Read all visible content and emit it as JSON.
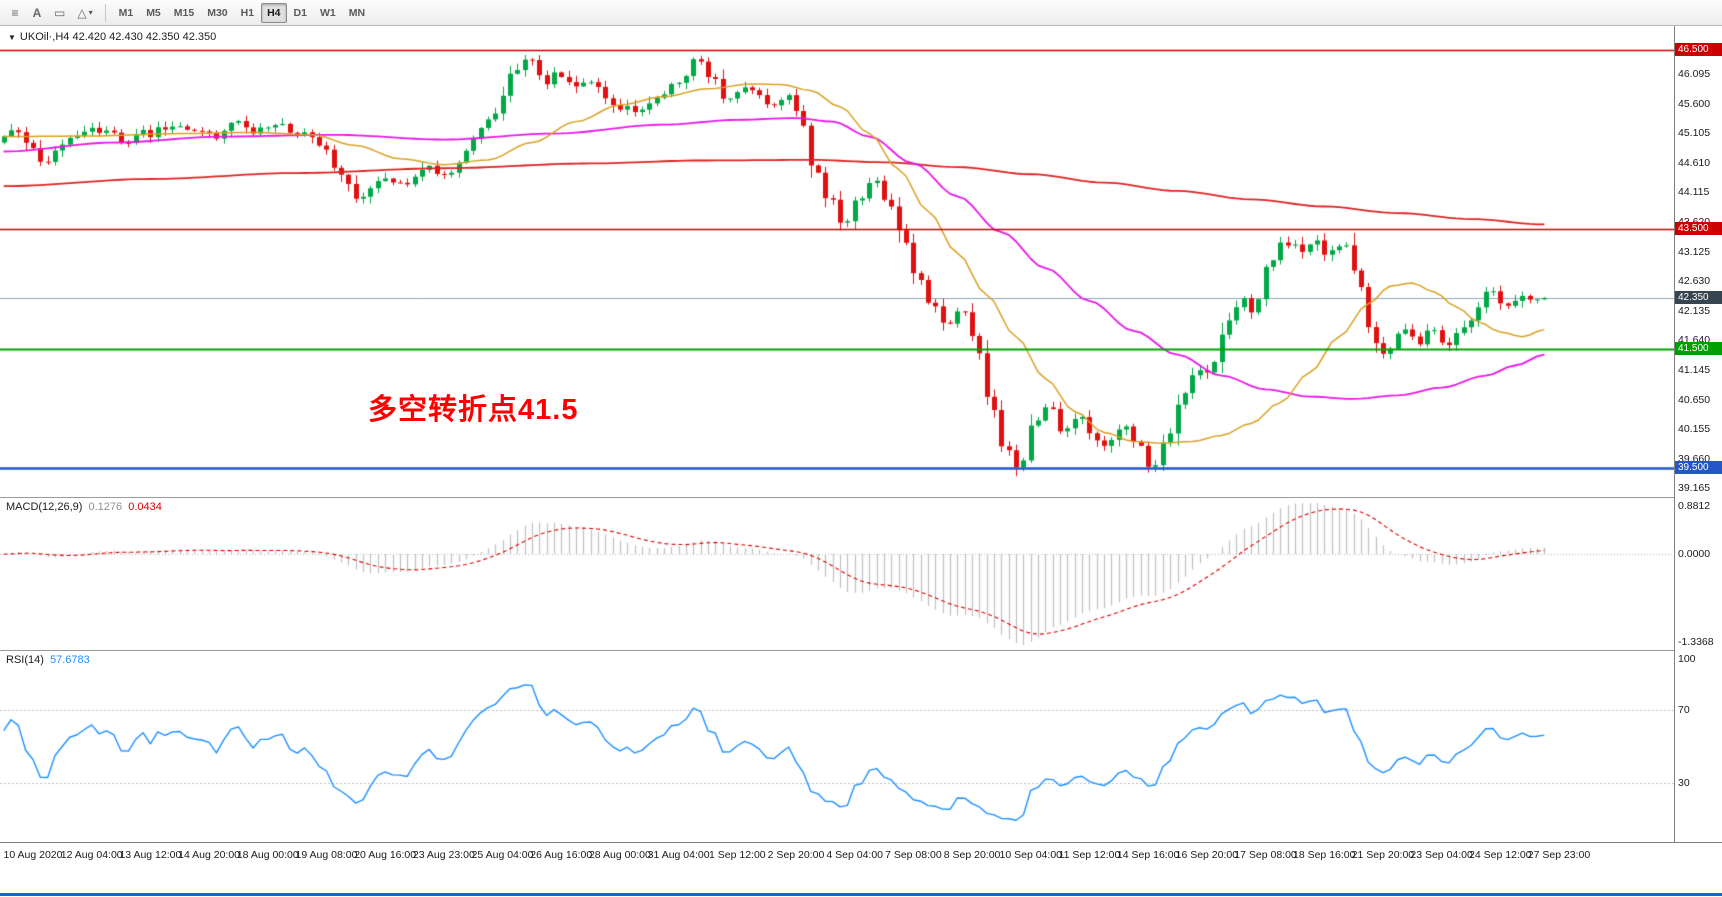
{
  "icons": {
    "chart_menu": "≡",
    "text_label": "A",
    "text_frame": "▭",
    "shapes": "△",
    "dropdown_caret": "▾",
    "symbol_collapse": "▼"
  },
  "toolbar": {
    "timeframes": [
      "M1",
      "M5",
      "M15",
      "M30",
      "H1",
      "H4",
      "D1",
      "W1",
      "MN"
    ],
    "active_timeframe": "H4"
  },
  "symbol_info": "UKOil·,H4  42.420 42.430 42.350 42.350",
  "annotation": {
    "text": "多空转折点41.5"
  },
  "macd": {
    "title": "MACD(12,26,9)",
    "value_main": "0.1276",
    "value_signal": "0.0434",
    "scale_labels": [
      "0.8812",
      "0.0000",
      "-1.3368"
    ]
  },
  "rsi": {
    "title": "RSI(14)",
    "value": "57.6783",
    "scale_labels": [
      "100",
      "70",
      "30"
    ],
    "levels": [
      70,
      30
    ]
  },
  "price_axis_labels": [
    "46.095",
    "45.600",
    "45.105",
    "44.610",
    "44.115",
    "43.620",
    "43.125",
    "42.630",
    "42.135",
    "41.640",
    "41.145",
    "40.650",
    "40.155",
    "39.660",
    "39.165"
  ],
  "time_axis_labels": [
    "10 Aug 2020",
    "12 Aug 04:00",
    "13 Aug 12:00",
    "14 Aug 20:00",
    "18 Aug 00:00",
    "19 Aug 08:00",
    "20 Aug 16:00",
    "23 Aug 23:00",
    "25 Aug 04:00",
    "26 Aug 16:00",
    "28 Aug 00:00",
    "31 Aug 04:00",
    "1 Sep 12:00",
    "2 Sep 20:00",
    "4 Sep 04:00",
    "7 Sep 08:00",
    "8 Sep 20:00",
    "10 Sep 04:00",
    "11 Sep 12:00",
    "14 Sep 16:00",
    "16 Sep 20:00",
    "17 Sep 08:00",
    "18 Sep 16:00",
    "21 Sep 20:00",
    "23 Sep 04:00",
    "24 Sep 12:00",
    "27 Sep 23:00"
  ],
  "colors": {
    "candle_up": "#00a946",
    "candle_down": "#e01010",
    "ma_slow": "#dd2222",
    "ma_mid": "#e817e8",
    "ma_fast": "#d9a023",
    "line_red": "#cc0000",
    "line_green": "#00a000",
    "line_blue": "#2457c5",
    "bid_badge": "#36454f",
    "bid_line": "#8fa8bb",
    "macd_hist": "#c0c0c0",
    "macd_signal": "#dd0000",
    "macd_value": "#909090",
    "rsi_line": "#1e90ff",
    "annotation": "#ff0000"
  },
  "chart_data": {
    "type": "candlestick",
    "symbol": "UKOil",
    "timeframe": "H4",
    "ohlc_current": {
      "open": "42.420",
      "high": "42.430",
      "low": "42.350",
      "close": "42.350"
    },
    "bars": 211,
    "price_range_visible": [
      39.02,
      46.9
    ],
    "hlines": [
      {
        "price": 46.5,
        "label": "46.500",
        "color_key": "line_red",
        "width": 1.6
      },
      {
        "price": 43.5,
        "label": "43.500",
        "color_key": "line_red",
        "width": 1.6
      },
      {
        "price": 41.5,
        "label": "41.500",
        "color_key": "line_green",
        "width": 2
      },
      {
        "price": 39.5,
        "label": "39.500",
        "color_key": "line_blue",
        "width": 2.4
      }
    ],
    "bid": {
      "price": 42.35,
      "label": "42.350",
      "color_key": "bid_badge"
    },
    "close_path_anchors": [
      [
        0,
        44.95
      ],
      [
        2,
        45.2
      ],
      [
        4,
        44.95
      ],
      [
        6,
        44.6
      ],
      [
        8,
        44.85
      ],
      [
        11,
        45.15
      ],
      [
        14,
        45.18
      ],
      [
        17,
        44.95
      ],
      [
        20,
        45.1
      ],
      [
        23,
        45.22
      ],
      [
        26,
        45.15
      ],
      [
        29,
        45.05
      ],
      [
        32,
        45.3
      ],
      [
        35,
        45.12
      ],
      [
        38,
        45.25
      ],
      [
        41,
        45.1
      ],
      [
        44,
        44.85
      ],
      [
        47,
        44.35
      ],
      [
        49,
        43.95
      ],
      [
        52,
        44.4
      ],
      [
        55,
        44.2
      ],
      [
        58,
        44.5
      ],
      [
        61,
        44.4
      ],
      [
        64,
        44.9
      ],
      [
        67,
        45.45
      ],
      [
        70,
        46.1
      ],
      [
        72,
        46.35
      ],
      [
        74,
        45.95
      ],
      [
        76,
        46.15
      ],
      [
        78,
        45.85
      ],
      [
        81,
        45.95
      ],
      [
        84,
        45.55
      ],
      [
        87,
        45.45
      ],
      [
        90,
        45.7
      ],
      [
        93,
        46.05
      ],
      [
        95,
        46.38
      ],
      [
        97,
        46.0
      ],
      [
        99,
        45.7
      ],
      [
        102,
        45.85
      ],
      [
        105,
        45.55
      ],
      [
        107,
        45.75
      ],
      [
        109,
        45.35
      ],
      [
        111,
        44.45
      ],
      [
        113,
        44.0
      ],
      [
        115,
        43.6
      ],
      [
        117,
        44.05
      ],
      [
        119,
        44.3
      ],
      [
        121,
        43.9
      ],
      [
        123,
        43.4
      ],
      [
        125,
        42.65
      ],
      [
        127,
        42.25
      ],
      [
        129,
        41.9
      ],
      [
        131,
        42.2
      ],
      [
        133,
        41.65
      ],
      [
        135,
        40.6
      ],
      [
        137,
        39.8
      ],
      [
        139,
        39.55
      ],
      [
        141,
        40.25
      ],
      [
        143,
        40.6
      ],
      [
        145,
        40.1
      ],
      [
        147,
        40.45
      ],
      [
        149,
        40.0
      ],
      [
        151,
        39.9
      ],
      [
        153,
        40.25
      ],
      [
        155,
        39.9
      ],
      [
        157,
        39.5
      ],
      [
        159,
        39.95
      ],
      [
        161,
        40.6
      ],
      [
        163,
        41.2
      ],
      [
        165,
        41.1
      ],
      [
        167,
        41.9
      ],
      [
        169,
        42.3
      ],
      [
        171,
        42.15
      ],
      [
        173,
        43.0
      ],
      [
        175,
        43.3
      ],
      [
        177,
        43.15
      ],
      [
        179,
        43.35
      ],
      [
        181,
        43.1
      ],
      [
        183,
        43.3
      ],
      [
        185,
        42.75
      ],
      [
        187,
        41.7
      ],
      [
        189,
        41.45
      ],
      [
        191,
        41.8
      ],
      [
        193,
        41.6
      ],
      [
        195,
        41.85
      ],
      [
        197,
        41.5
      ],
      [
        199,
        41.75
      ],
      [
        201,
        42.1
      ],
      [
        203,
        42.55
      ],
      [
        205,
        42.2
      ],
      [
        207,
        42.4
      ],
      [
        209,
        42.25
      ],
      [
        210,
        42.35
      ]
    ],
    "ma_lines": [
      {
        "name": "ma-slow",
        "color_key": "ma_slow",
        "width": 1.8,
        "anchors": [
          [
            0,
            44.22
          ],
          [
            20,
            44.34
          ],
          [
            40,
            44.44
          ],
          [
            60,
            44.52
          ],
          [
            80,
            44.6
          ],
          [
            95,
            44.65
          ],
          [
            110,
            44.66
          ],
          [
            120,
            44.62
          ],
          [
            130,
            44.54
          ],
          [
            140,
            44.42
          ],
          [
            150,
            44.28
          ],
          [
            160,
            44.14
          ],
          [
            170,
            44.0
          ],
          [
            180,
            43.88
          ],
          [
            190,
            43.77
          ],
          [
            200,
            43.67
          ],
          [
            210,
            43.58
          ]
        ]
      },
      {
        "name": "ma-medium",
        "color_key": "ma_mid",
        "width": 1.8,
        "anchors": [
          [
            0,
            44.8
          ],
          [
            15,
            44.95
          ],
          [
            30,
            45.05
          ],
          [
            45,
            45.08
          ],
          [
            60,
            45.0
          ],
          [
            75,
            45.1
          ],
          [
            90,
            45.25
          ],
          [
            100,
            45.33
          ],
          [
            108,
            45.36
          ],
          [
            113,
            45.3
          ],
          [
            118,
            45.05
          ],
          [
            124,
            44.6
          ],
          [
            130,
            44.05
          ],
          [
            136,
            43.45
          ],
          [
            142,
            42.85
          ],
          [
            148,
            42.3
          ],
          [
            154,
            41.8
          ],
          [
            160,
            41.4
          ],
          [
            166,
            41.05
          ],
          [
            172,
            40.82
          ],
          [
            178,
            40.7
          ],
          [
            184,
            40.66
          ],
          [
            190,
            40.72
          ],
          [
            196,
            40.85
          ],
          [
            202,
            41.05
          ],
          [
            206,
            41.22
          ],
          [
            210,
            41.4
          ]
        ]
      },
      {
        "name": "ma-fast",
        "color_key": "ma_fast",
        "width": 1.5,
        "anchors": [
          [
            0,
            45.05
          ],
          [
            12,
            45.06
          ],
          [
            24,
            45.1
          ],
          [
            34,
            45.12
          ],
          [
            42,
            45.08
          ],
          [
            48,
            44.9
          ],
          [
            54,
            44.68
          ],
          [
            60,
            44.58
          ],
          [
            66,
            44.66
          ],
          [
            72,
            44.95
          ],
          [
            78,
            45.3
          ],
          [
            84,
            45.58
          ],
          [
            90,
            45.72
          ],
          [
            96,
            45.85
          ],
          [
            102,
            45.93
          ],
          [
            106,
            45.92
          ],
          [
            110,
            45.82
          ],
          [
            114,
            45.55
          ],
          [
            118,
            45.1
          ],
          [
            122,
            44.5
          ],
          [
            126,
            43.8
          ],
          [
            130,
            43.1
          ],
          [
            134,
            42.4
          ],
          [
            138,
            41.7
          ],
          [
            142,
            41.0
          ],
          [
            146,
            40.45
          ],
          [
            150,
            40.1
          ],
          [
            154,
            39.95
          ],
          [
            158,
            39.92
          ],
          [
            162,
            39.95
          ],
          [
            166,
            40.05
          ],
          [
            170,
            40.25
          ],
          [
            174,
            40.6
          ],
          [
            178,
            41.1
          ],
          [
            182,
            41.7
          ],
          [
            186,
            42.25
          ],
          [
            189,
            42.55
          ],
          [
            192,
            42.6
          ],
          [
            195,
            42.45
          ],
          [
            198,
            42.2
          ],
          [
            201,
            41.95
          ],
          [
            204,
            41.78
          ],
          [
            207,
            41.7
          ],
          [
            210,
            41.82
          ]
        ]
      }
    ],
    "indicators": {
      "macd_params": [
        12,
        26,
        9
      ],
      "rsi_period": 14
    }
  }
}
